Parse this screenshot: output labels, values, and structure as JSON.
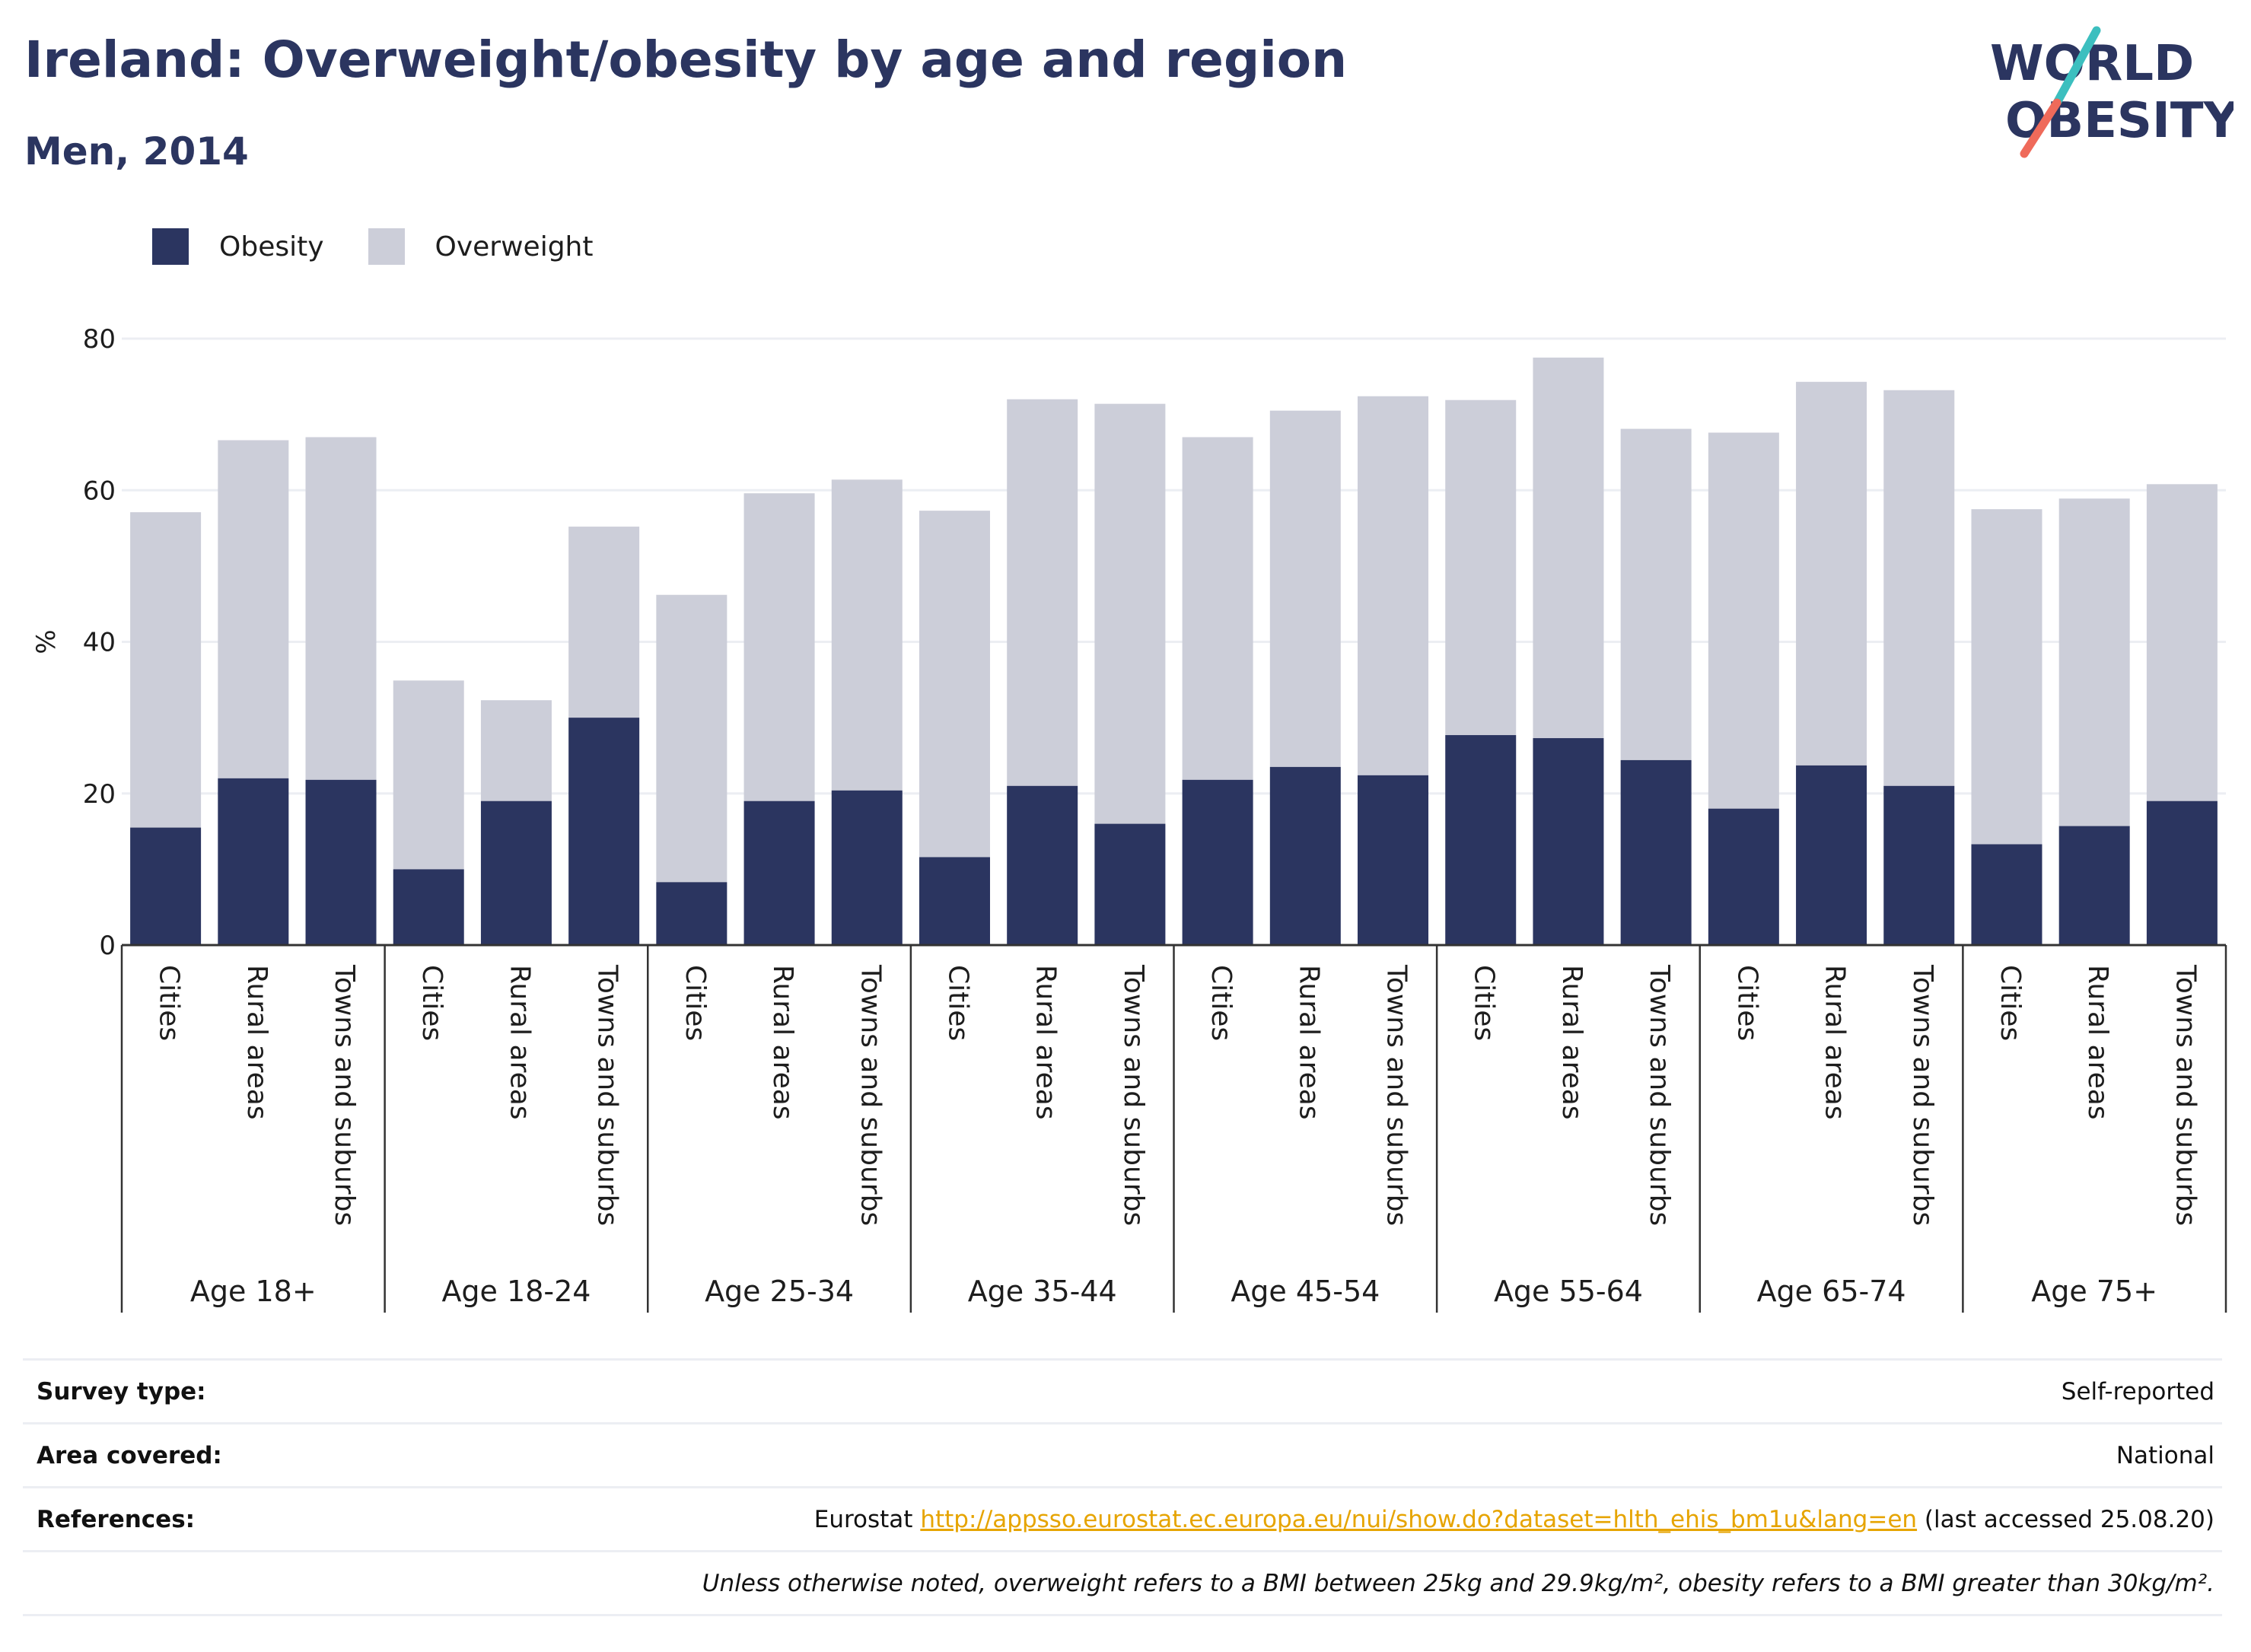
{
  "header": {
    "title": "Ireland: Overweight/obesity by age and region",
    "subtitle": "Men, 2014",
    "logo_line1": "WORLD",
    "logo_line2": "OBESITY"
  },
  "colors": {
    "obesity": "#2b3560",
    "overweight": "#ccced9",
    "title": "#2b3560",
    "link": "#e6a400",
    "logo_teal": "#3cbfbf",
    "logo_coral": "#ef6a5a"
  },
  "chart_data": {
    "type": "bar",
    "stacked": true,
    "ylabel": "%",
    "ylim": [
      0,
      80
    ],
    "yticks": [
      0,
      20,
      40,
      60,
      80
    ],
    "grid": true,
    "legend_position": "top-left",
    "groups": [
      "Age 18+",
      "Age 18-24",
      "Age 25-34",
      "Age 35-44",
      "Age 45-54",
      "Age 55-64",
      "Age 65-74",
      "Age 75+"
    ],
    "subcategories": [
      "Cities",
      "Rural areas",
      "Towns and suburbs"
    ],
    "series": [
      {
        "name": "Obesity",
        "values": [
          [
            15.5,
            22.0,
            21.8
          ],
          [
            10.0,
            19.0,
            30.0
          ],
          [
            8.3,
            19.0,
            20.4
          ],
          [
            11.6,
            21.0,
            16.0
          ],
          [
            21.8,
            23.5,
            22.4
          ],
          [
            27.7,
            27.3,
            24.4
          ],
          [
            18.0,
            23.7,
            21.0
          ],
          [
            13.3,
            15.7,
            19.0
          ]
        ]
      },
      {
        "name": "Overweight",
        "values": [
          [
            41.6,
            44.6,
            45.2
          ],
          [
            24.9,
            13.3,
            25.2
          ],
          [
            37.9,
            40.6,
            41.0
          ],
          [
            45.7,
            51.0,
            55.4
          ],
          [
            45.2,
            47.0,
            50.0
          ],
          [
            44.2,
            50.2,
            43.7
          ],
          [
            49.6,
            50.6,
            52.2
          ],
          [
            44.2,
            43.2,
            41.8
          ]
        ]
      }
    ]
  },
  "info": {
    "survey_label": "Survey type:",
    "survey_value": "Self-reported",
    "area_label": "Area covered:",
    "area_value": "National",
    "refs_label": "References:",
    "refs_prefix": "Eurostat",
    "refs_link": "http://appsso.eurostat.ec.europa.eu/nui/show.do?dataset=hlth_ehis_bm1u&lang=en",
    "refs_suffix": "(last accessed 25.08.20)",
    "note": "Unless otherwise noted, overweight refers to a BMI between 25kg and 29.9kg/m², obesity refers to a BMI greater than 30kg/m²."
  }
}
